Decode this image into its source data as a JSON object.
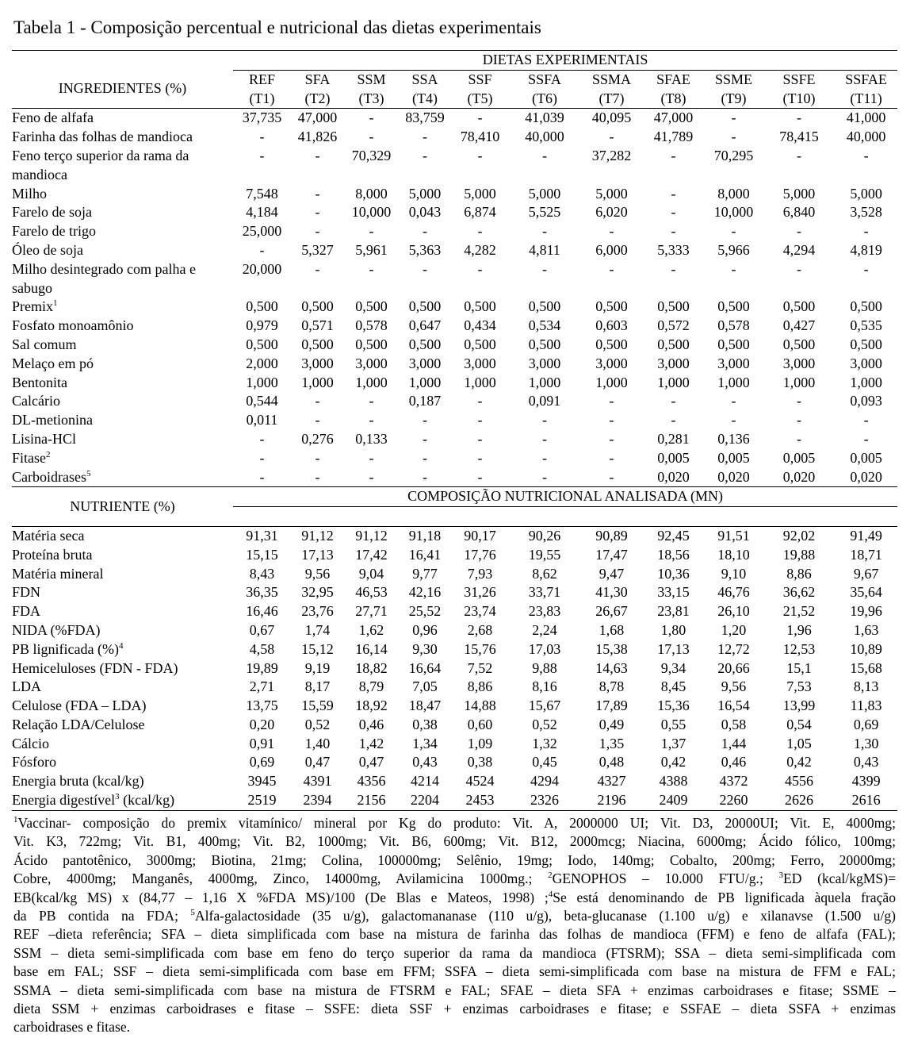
{
  "caption": "Tabela 1 - Composição percentual e nutricional das dietas experimentais",
  "group_header": "DIETAS EXPERIMENTAIS",
  "ingredients_header": "INGREDIENTES (%)",
  "diets": [
    {
      "code": "REF",
      "trt": "(T1)"
    },
    {
      "code": "SFA",
      "trt": "(T2)"
    },
    {
      "code": "SSM",
      "trt": "(T3)"
    },
    {
      "code": "SSA",
      "trt": "(T4)"
    },
    {
      "code": "SSF",
      "trt": "(T5)"
    },
    {
      "code": "SSFA",
      "trt": "(T6)"
    },
    {
      "code": "SSMA",
      "trt": "(T7)"
    },
    {
      "code": "SFAE",
      "trt": "(T8)"
    },
    {
      "code": "SSME",
      "trt": "(T9)"
    },
    {
      "code": "SSFE",
      "trt": "(T10)"
    },
    {
      "code": "SSFAE",
      "trt": "(T11)"
    }
  ],
  "ingredients": [
    {
      "name": "Feno de alfafa",
      "sup": "",
      "values": [
        "37,735",
        "47,000",
        "-",
        "83,759",
        "-",
        "41,039",
        "40,095",
        "47,000",
        "-",
        "-",
        "41,000"
      ]
    },
    {
      "name": "Farinha das folhas de mandioca",
      "sup": "",
      "values": [
        "-",
        "41,826",
        "-",
        "-",
        "78,410",
        "40,000",
        "-",
        "41,789",
        "-",
        "78,415",
        "40,000"
      ]
    },
    {
      "name": "Feno terço superior da rama da",
      "name2": "mandioca",
      "sup": "",
      "values": [
        "-",
        "-",
        "70,329",
        "-",
        "-",
        "-",
        "37,282",
        "-",
        "70,295",
        "-",
        "-"
      ]
    },
    {
      "name": "Milho",
      "sup": "",
      "values": [
        "7,548",
        "-",
        "8,000",
        "5,000",
        "5,000",
        "5,000",
        "5,000",
        "-",
        "8,000",
        "5,000",
        "5,000"
      ]
    },
    {
      "name": "Farelo de soja",
      "sup": "",
      "values": [
        "4,184",
        "-",
        "10,000",
        "0,043",
        "6,874",
        "5,525",
        "6,020",
        "-",
        "10,000",
        "6,840",
        "3,528"
      ]
    },
    {
      "name": "Farelo de trigo",
      "sup": "",
      "values": [
        "25,000",
        "-",
        "-",
        "-",
        "-",
        "-",
        "-",
        "-",
        "-",
        "-",
        "-"
      ]
    },
    {
      "name": "Óleo de soja",
      "sup": "",
      "values": [
        "-",
        "5,327",
        "5,961",
        "5,363",
        "4,282",
        "4,811",
        "6,000",
        "5,333",
        "5,966",
        "4,294",
        "4,819"
      ]
    },
    {
      "name": "Milho desintegrado com palha e",
      "name2": "sabugo",
      "sup": "",
      "values": [
        "20,000",
        "-",
        "-",
        "-",
        "-",
        "-",
        "-",
        "-",
        "-",
        "-",
        "-"
      ]
    },
    {
      "name": "Premix",
      "sup": "1",
      "values": [
        "0,500",
        "0,500",
        "0,500",
        "0,500",
        "0,500",
        "0,500",
        "0,500",
        "0,500",
        "0,500",
        "0,500",
        "0,500"
      ]
    },
    {
      "name": "Fosfato monoamônio",
      "sup": "",
      "values": [
        "0,979",
        "0,571",
        "0,578",
        "0,647",
        "0,434",
        "0,534",
        "0,603",
        "0,572",
        "0,578",
        "0,427",
        "0,535"
      ]
    },
    {
      "name": "Sal comum",
      "sup": "",
      "values": [
        "0,500",
        "0,500",
        "0,500",
        "0,500",
        "0,500",
        "0,500",
        "0,500",
        "0,500",
        "0,500",
        "0,500",
        "0,500"
      ]
    },
    {
      "name": "Melaço em pó",
      "sup": "",
      "values": [
        "2,000",
        "3,000",
        "3,000",
        "3,000",
        "3,000",
        "3,000",
        "3,000",
        "3,000",
        "3,000",
        "3,000",
        "3,000"
      ]
    },
    {
      "name": "Bentonita",
      "sup": "",
      "values": [
        "1,000",
        "1,000",
        "1,000",
        "1,000",
        "1,000",
        "1,000",
        "1,000",
        "1,000",
        "1,000",
        "1,000",
        "1,000"
      ]
    },
    {
      "name": "Calcário",
      "sup": "",
      "values": [
        "0,544",
        "-",
        "-",
        "0,187",
        "-",
        "0,091",
        "-",
        "-",
        "-",
        "-",
        "0,093"
      ]
    },
    {
      "name": "DL-metionina",
      "sup": "",
      "values": [
        "0,011",
        "-",
        "-",
        "-",
        "-",
        "-",
        "-",
        "-",
        "-",
        "-",
        "-"
      ]
    },
    {
      "name": "Lisina-HCl",
      "sup": "",
      "values": [
        "-",
        "0,276",
        "0,133",
        "-",
        "-",
        "-",
        "-",
        "0,281",
        "0,136",
        "-",
        "-"
      ]
    },
    {
      "name": "Fitase",
      "sup": "2",
      "values": [
        "-",
        "-",
        "-",
        "-",
        "-",
        "-",
        "-",
        "0,005",
        "0,005",
        "0,005",
        "0,005"
      ]
    },
    {
      "name": "Carboidrases",
      "sup": "5",
      "values": [
        "-",
        "-",
        "-",
        "-",
        "-",
        "-",
        "-",
        "0,020",
        "0,020",
        "0,020",
        "0,020"
      ]
    }
  ],
  "nutrient_header": "NUTRIENTE (%)",
  "nutrient_group_header": "COMPOSIÇÃO NUTRICIONAL ANALISADA (MN)",
  "nutrients": [
    {
      "name": "Matéria seca",
      "sup": "",
      "suffix": "",
      "values": [
        "91,31",
        "91,12",
        "91,12",
        "91,18",
        "90,17",
        "90,26",
        "90,89",
        "92,45",
        "91,51",
        "92,02",
        "91,49"
      ]
    },
    {
      "name": "Proteína bruta",
      "sup": "",
      "suffix": "",
      "values": [
        "15,15",
        "17,13",
        "17,42",
        "16,41",
        "17,76",
        "19,55",
        "17,47",
        "18,56",
        "18,10",
        "19,88",
        "18,71"
      ]
    },
    {
      "name": "Matéria mineral",
      "sup": "",
      "suffix": "",
      "values": [
        "8,43",
        "9,56",
        "9,04",
        "9,77",
        "7,93",
        "8,62",
        "9,47",
        "10,36",
        "9,10",
        "8,86",
        "9,67"
      ]
    },
    {
      "name": "FDN",
      "sup": "",
      "suffix": "",
      "values": [
        "36,35",
        "32,95",
        "46,53",
        "42,16",
        "31,26",
        "33,71",
        "41,30",
        "33,15",
        "46,76",
        "36,62",
        "35,64"
      ]
    },
    {
      "name": "FDA",
      "sup": "",
      "suffix": "",
      "values": [
        "16,46",
        "23,76",
        "27,71",
        "25,52",
        "23,74",
        "23,83",
        "26,67",
        "23,81",
        "26,10",
        "21,52",
        "19,96"
      ]
    },
    {
      "name": "NIDA (%FDA)",
      "sup": "",
      "suffix": "",
      "values": [
        "0,67",
        "1,74",
        "1,62",
        "0,96",
        "2,68",
        "2,24",
        "1,68",
        "1,80",
        "1,20",
        "1,96",
        "1,63"
      ]
    },
    {
      "name": "PB lignificada (%)",
      "sup": "4",
      "suffix": "",
      "values": [
        "4,58",
        "15,12",
        "16,14",
        "9,30",
        "15,76",
        "17,03",
        "15,38",
        "17,13",
        "12,72",
        "12,53",
        "10,89"
      ]
    },
    {
      "name": "Hemiceluloses (FDN - FDA)",
      "sup": "",
      "suffix": "",
      "values": [
        "19,89",
        "9,19",
        "18,82",
        "16,64",
        "7,52",
        "9,88",
        "14,63",
        "9,34",
        "20,66",
        "15,1",
        "15,68"
      ]
    },
    {
      "name": "LDA",
      "sup": "",
      "suffix": "",
      "values": [
        "2,71",
        "8,17",
        "8,79",
        "7,05",
        "8,86",
        "8,16",
        "8,78",
        "8,45",
        "9,56",
        "7,53",
        "8,13"
      ]
    },
    {
      "name": "Celulose (FDA – LDA)",
      "sup": "",
      "suffix": "",
      "values": [
        "13,75",
        "15,59",
        "18,92",
        "18,47",
        "14,88",
        "15,67",
        "17,89",
        "15,36",
        "16,54",
        "13,99",
        "11,83"
      ]
    },
    {
      "name": "Relação LDA/Celulose",
      "sup": "",
      "suffix": "",
      "values": [
        "0,20",
        "0,52",
        "0,46",
        "0,38",
        "0,60",
        "0,52",
        "0,49",
        "0,55",
        "0,58",
        "0,54",
        "0,69"
      ]
    },
    {
      "name": "Cálcio",
      "sup": "",
      "suffix": "",
      "values": [
        "0,91",
        "1,40",
        "1,42",
        "1,34",
        "1,09",
        "1,32",
        "1,35",
        "1,37",
        "1,44",
        "1,05",
        "1,30"
      ]
    },
    {
      "name": "Fósforo",
      "sup": "",
      "suffix": "",
      "values": [
        "0,69",
        "0,47",
        "0,47",
        "0,43",
        "0,38",
        "0,45",
        "0,48",
        "0,42",
        "0,46",
        "0,42",
        "0,43"
      ]
    },
    {
      "name": "Energia bruta (kcal/kg)",
      "sup": "",
      "suffix": "",
      "values": [
        "3945",
        "4391",
        "4356",
        "4214",
        "4524",
        "4294",
        "4327",
        "4388",
        "4372",
        "4556",
        "4399"
      ]
    },
    {
      "name": "Energia digestível",
      "sup": "3",
      "suffix": " (kcal/kg)",
      "values": [
        "2519",
        "2394",
        "2156",
        "2204",
        "2453",
        "2326",
        "2196",
        "2409",
        "2260",
        "2626",
        "2616"
      ]
    }
  ],
  "footnote_lines": [
    [
      {
        "sup": "1"
      },
      {
        "t": "Vaccinar- composição do premix vitamínico/ mineral por Kg do produto: Vit. A, 2000000 UI; Vit. D3, 20000UI; Vit. E, 4000mg;"
      }
    ],
    [
      {
        "t": "Vit. K3, 722mg; Vit. B1, 400mg; Vit. B2, 1000mg; Vit. B6, 600mg; Vit. B12, 2000mcg; Niacina, 6000mg; Ácido fólico, 100mg;"
      }
    ],
    [
      {
        "t": "Ácido pantotênico, 3000mg; Biotina, 21mg; Colina, 100000mg; Selênio, 19mg; Iodo, 140mg; Cobalto, 200mg; Ferro, 20000mg;"
      }
    ],
    [
      {
        "t": "Cobre, 4000mg; Manganês, 4000mg, Zinco, 14000mg, Avilamicina 1000mg.; "
      },
      {
        "sup": "2"
      },
      {
        "t": "GENOPHOS – 10.000 FTU/g.; "
      },
      {
        "sup": "3"
      },
      {
        "t": "ED (kcal/kgMS)="
      }
    ],
    [
      {
        "t": "EB(kcal/kg MS) x (84,77 – 1,16 X %FDA MS)/100 (De Blas e Mateos, 1998) ;"
      },
      {
        "sup": "4"
      },
      {
        "t": "Se está denominando de PB lignificada àquela fração"
      }
    ],
    [
      {
        "t": "da PB contida na FDA; "
      },
      {
        "sup": "5"
      },
      {
        "t": "Alfa-galactosidade (35 u/g), galactomananase (110 u/g), beta-glucanase (1.100 u/g) e xilanavse (1.500 u/g)"
      }
    ],
    [
      {
        "t": "REF –dieta referência; SFA – dieta simplificada com base na mistura de farinha das folhas de mandioca (FFM) e feno de alfafa (FAL);"
      }
    ],
    [
      {
        "t": "SSM – dieta semi-simplificada com base em feno do terço superior da rama da mandioca (FTSRM); SSA – dieta semi-simplificada com"
      }
    ],
    [
      {
        "t": "base em FAL; SSF – dieta semi-simplificada com base em FFM; SSFA – dieta semi-simplificada com base na mistura de FFM e FAL;"
      }
    ],
    [
      {
        "t": "SSMA – dieta semi-simplificada com base na mistura de FTSRM e FAL; SFAE – dieta SFA + enzimas carboidrases e fitase; SSME –"
      }
    ],
    [
      {
        "t": "dieta SSM + enzimas carboidrases e fitase – SSFE: dieta SSF + enzimas carboidrases e fitase; e SSFAE – dieta SSFA + enzimas"
      }
    ],
    [
      {
        "t": "carboidrases e fitase."
      }
    ]
  ]
}
